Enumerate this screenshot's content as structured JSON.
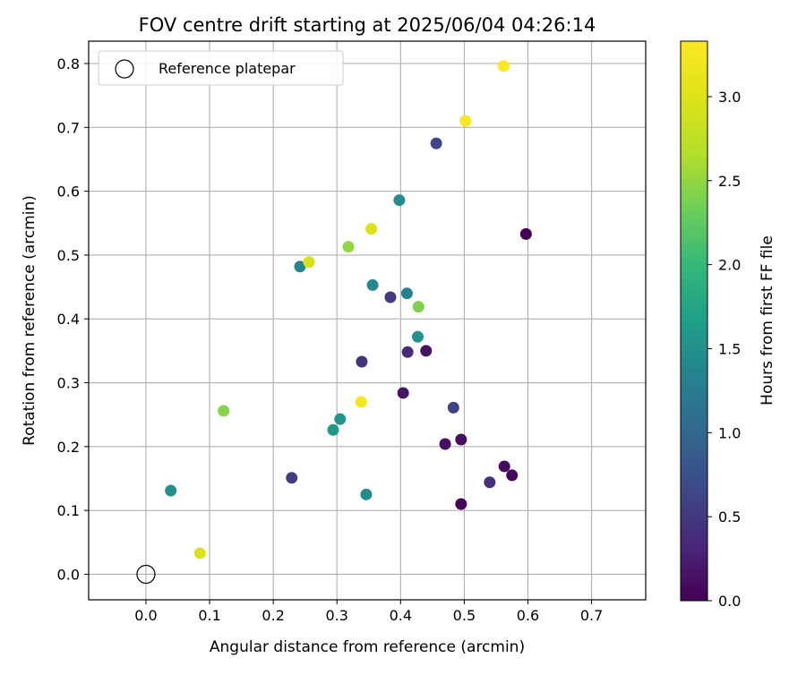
{
  "chart_data": {
    "type": "scatter",
    "title": "FOV centre drift starting at 2025/06/04 04:26:14",
    "xlabel": "Angular distance from reference (arcmin)",
    "ylabel": "Rotation from reference (arcmin)",
    "xlim": [
      -0.09,
      0.785
    ],
    "ylim": [
      -0.04,
      0.835
    ],
    "x_ticks": [
      0.0,
      0.1,
      0.2,
      0.3,
      0.4,
      0.5,
      0.6,
      0.7
    ],
    "x_tick_labels": [
      "0.0",
      "0.1",
      "0.2",
      "0.3",
      "0.4",
      "0.5",
      "0.6",
      "0.7"
    ],
    "y_ticks": [
      0.0,
      0.1,
      0.2,
      0.3,
      0.4,
      0.5,
      0.6,
      0.7,
      0.8
    ],
    "y_tick_labels": [
      "0.0",
      "0.1",
      "0.2",
      "0.3",
      "0.4",
      "0.5",
      "0.6",
      "0.7",
      "0.8"
    ],
    "grid": true,
    "legend": {
      "position": "top-left",
      "entries": [
        "Reference platepar"
      ]
    },
    "reference_point": {
      "x": 0.0,
      "y": 0.0,
      "label": "Reference platepar"
    },
    "colorbar": {
      "label": "Hours from first FF file",
      "colormap": "viridis",
      "range": [
        0.0,
        3.33
      ],
      "ticks": [
        0.0,
        0.5,
        1.0,
        1.5,
        2.0,
        2.5,
        3.0
      ],
      "tick_labels": [
        "0.0",
        "0.5",
        "1.0",
        "1.5",
        "2.0",
        "2.5",
        "3.0"
      ]
    },
    "points": [
      {
        "x": 0.597,
        "y": 0.533,
        "c": 0.0
      },
      {
        "x": 0.495,
        "y": 0.11,
        "c": 0.02
      },
      {
        "x": 0.575,
        "y": 0.155,
        "c": 0.05
      },
      {
        "x": 0.563,
        "y": 0.169,
        "c": 0.08
      },
      {
        "x": 0.495,
        "y": 0.211,
        "c": 0.1
      },
      {
        "x": 0.47,
        "y": 0.204,
        "c": 0.13
      },
      {
        "x": 0.44,
        "y": 0.35,
        "c": 0.15
      },
      {
        "x": 0.404,
        "y": 0.284,
        "c": 0.18
      },
      {
        "x": 0.411,
        "y": 0.348,
        "c": 0.35
      },
      {
        "x": 0.54,
        "y": 0.144,
        "c": 0.4
      },
      {
        "x": 0.339,
        "y": 0.333,
        "c": 0.45
      },
      {
        "x": 0.384,
        "y": 0.434,
        "c": 0.5
      },
      {
        "x": 0.229,
        "y": 0.151,
        "c": 0.55
      },
      {
        "x": 0.483,
        "y": 0.261,
        "c": 0.6
      },
      {
        "x": 0.456,
        "y": 0.675,
        "c": 0.65
      },
      {
        "x": 0.41,
        "y": 0.44,
        "c": 1.3
      },
      {
        "x": 0.242,
        "y": 0.482,
        "c": 1.35
      },
      {
        "x": 0.356,
        "y": 0.453,
        "c": 1.4
      },
      {
        "x": 0.398,
        "y": 0.586,
        "c": 1.45
      },
      {
        "x": 0.346,
        "y": 0.125,
        "c": 1.45
      },
      {
        "x": 0.039,
        "y": 0.131,
        "c": 1.5
      },
      {
        "x": 0.427,
        "y": 0.372,
        "c": 1.5
      },
      {
        "x": 0.305,
        "y": 0.243,
        "c": 1.55
      },
      {
        "x": 0.294,
        "y": 0.226,
        "c": 1.6
      },
      {
        "x": 0.428,
        "y": 0.419,
        "c": 2.4
      },
      {
        "x": 0.122,
        "y": 0.256,
        "c": 2.45
      },
      {
        "x": 0.318,
        "y": 0.513,
        "c": 2.5
      },
      {
        "x": 0.256,
        "y": 0.489,
        "c": 2.95
      },
      {
        "x": 0.354,
        "y": 0.541,
        "c": 3.0
      },
      {
        "x": 0.085,
        "y": 0.033,
        "c": 3.0
      },
      {
        "x": 0.338,
        "y": 0.27,
        "c": 3.25
      },
      {
        "x": 0.502,
        "y": 0.71,
        "c": 3.28
      },
      {
        "x": 0.562,
        "y": 0.796,
        "c": 3.3
      }
    ]
  }
}
